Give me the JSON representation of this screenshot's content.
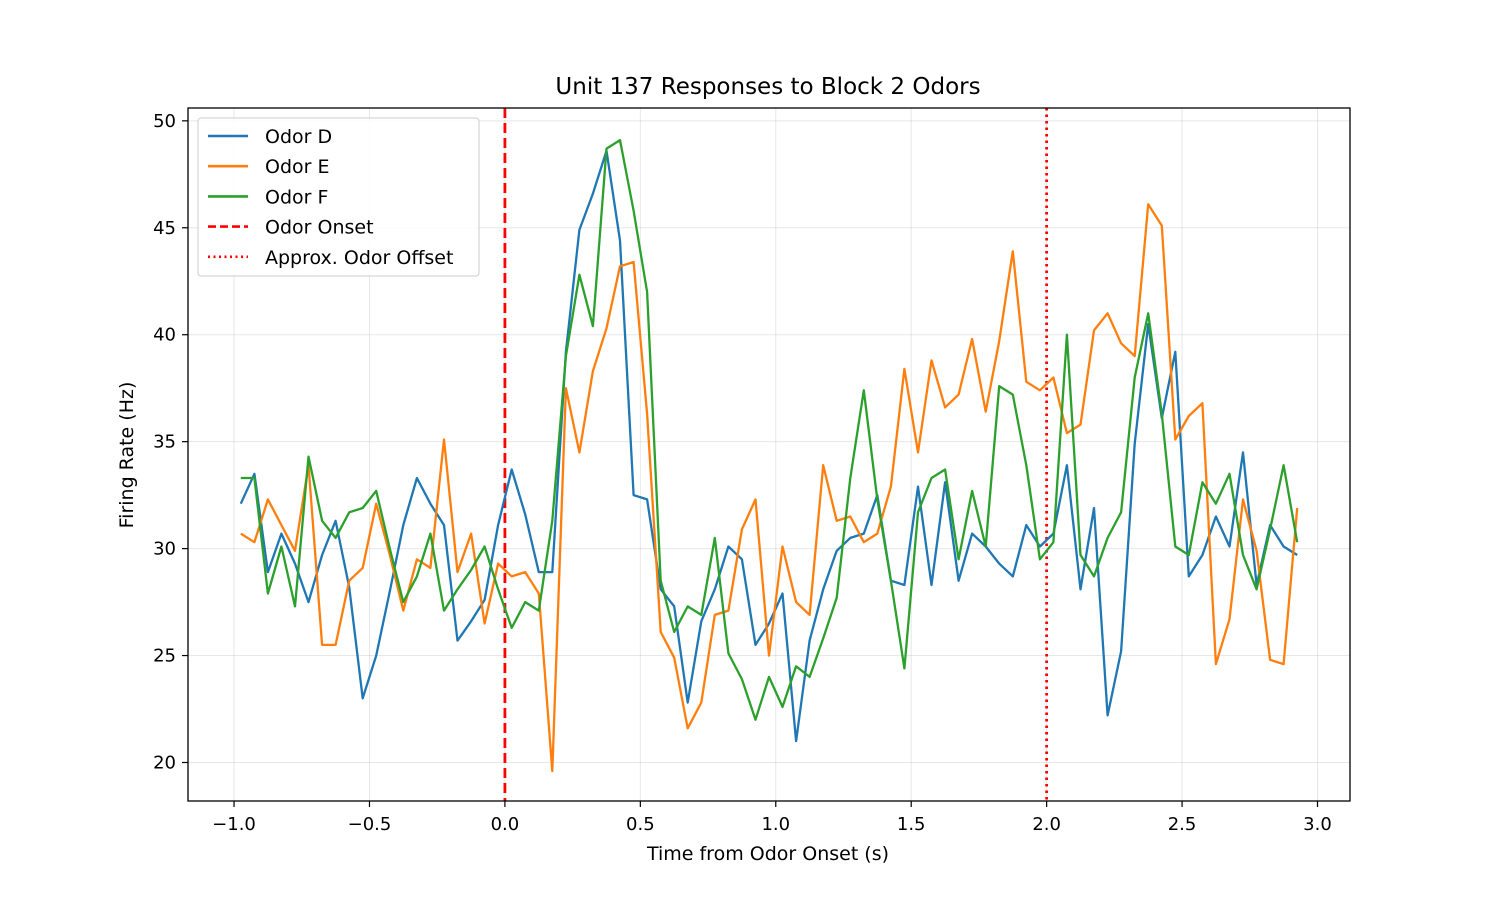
{
  "chart_data": {
    "type": "line",
    "title": "Unit 137 Responses to Block 2 Odors",
    "xlabel": "Time from Odor Onset (s)",
    "ylabel": "Firing Rate (Hz)",
    "xlim": [
      -1.17,
      3.12
    ],
    "ylim": [
      18.2,
      50.6
    ],
    "xticks": [
      -1.0,
      -0.5,
      0.0,
      0.5,
      1.0,
      1.5,
      2.0,
      2.5,
      3.0
    ],
    "xtick_labels": [
      "−1.0",
      "−0.5",
      "0.0",
      "0.5",
      "1.0",
      "1.5",
      "2.0",
      "2.5",
      "3.0"
    ],
    "yticks": [
      20,
      25,
      30,
      35,
      40,
      45,
      50
    ],
    "ytick_labels": [
      "20",
      "25",
      "30",
      "35",
      "40",
      "45",
      "50"
    ],
    "grid": true,
    "legend_position": "top-left",
    "x": [
      -0.975,
      -0.925,
      -0.875,
      -0.825,
      -0.775,
      -0.725,
      -0.675,
      -0.625,
      -0.575,
      -0.525,
      -0.475,
      -0.425,
      -0.375,
      -0.325,
      -0.275,
      -0.225,
      -0.175,
      -0.125,
      -0.075,
      -0.025,
      0.025,
      0.075,
      0.125,
      0.175,
      0.225,
      0.275,
      0.325,
      0.375,
      0.425,
      0.475,
      0.525,
      0.575,
      0.625,
      0.675,
      0.725,
      0.775,
      0.825,
      0.875,
      0.925,
      0.975,
      1.025,
      1.075,
      1.125,
      1.175,
      1.225,
      1.275,
      1.325,
      1.375,
      1.425,
      1.475,
      1.525,
      1.575,
      1.625,
      1.675,
      1.725,
      1.775,
      1.825,
      1.875,
      1.925,
      1.975,
      2.025,
      2.075,
      2.125,
      2.175,
      2.225,
      2.275,
      2.325,
      2.375,
      2.425,
      2.475,
      2.525,
      2.575,
      2.625,
      2.675,
      2.725,
      2.775,
      2.825,
      2.875,
      2.925
    ],
    "series": [
      {
        "name": "Odor D",
        "color": "#1f77b4",
        "values": [
          32.1,
          33.5,
          28.9,
          30.7,
          29.3,
          27.5,
          29.7,
          31.3,
          28.2,
          23.0,
          25.0,
          28.0,
          31.1,
          33.3,
          32.1,
          31.1,
          25.7,
          26.6,
          27.6,
          31.1,
          33.7,
          31.6,
          28.9,
          28.9,
          39.2,
          44.9,
          46.6,
          48.6,
          44.4,
          32.5,
          32.3,
          28.1,
          27.3,
          22.8,
          26.6,
          28.1,
          30.1,
          29.5,
          25.5,
          26.5,
          27.9,
          21.0,
          25.7,
          28.1,
          29.9,
          30.5,
          30.7,
          32.5,
          28.5,
          28.3,
          32.9,
          28.3,
          33.1,
          28.5,
          30.7,
          30.1,
          29.3,
          28.7,
          31.1,
          30.1,
          30.7,
          33.9,
          28.1,
          31.9,
          22.2,
          25.2,
          34.9,
          40.5,
          36.1,
          39.2,
          28.7,
          29.7,
          31.5,
          30.1,
          34.5,
          28.3,
          31.1,
          30.1,
          29.7
        ]
      },
      {
        "name": "Odor E",
        "color": "#ff7f0e",
        "values": [
          30.7,
          30.3,
          32.3,
          31.1,
          29.9,
          33.9,
          25.5,
          25.5,
          28.5,
          29.1,
          32.1,
          29.7,
          27.1,
          29.5,
          29.1,
          35.1,
          28.9,
          30.7,
          26.5,
          29.3,
          28.7,
          28.9,
          27.9,
          19.6,
          37.5,
          34.5,
          38.3,
          40.3,
          43.2,
          43.4,
          36.3,
          26.1,
          24.9,
          21.6,
          22.8,
          26.9,
          27.1,
          30.9,
          32.3,
          25.0,
          30.1,
          27.5,
          26.9,
          33.9,
          31.3,
          31.5,
          30.3,
          30.7,
          32.9,
          38.4,
          34.5,
          38.8,
          36.6,
          37.2,
          39.8,
          36.4,
          39.7,
          43.9,
          37.8,
          37.4,
          38.0,
          35.4,
          35.8,
          40.2,
          41.0,
          39.6,
          39.0,
          46.1,
          45.1,
          35.1,
          36.2,
          36.8,
          24.6,
          26.7,
          32.3,
          29.9,
          24.8,
          24.6,
          31.9
        ]
      },
      {
        "name": "Odor F",
        "color": "#2ca02c",
        "values": [
          33.3,
          33.3,
          27.9,
          30.1,
          27.3,
          34.3,
          31.3,
          30.5,
          31.7,
          31.9,
          32.7,
          30.0,
          27.5,
          28.7,
          30.7,
          27.1,
          28.1,
          29.0,
          30.1,
          28.1,
          26.3,
          27.5,
          27.1,
          31.3,
          39.0,
          42.8,
          40.4,
          48.7,
          49.1,
          45.8,
          42.0,
          28.5,
          26.1,
          27.3,
          26.9,
          30.5,
          25.1,
          23.9,
          22.0,
          24.0,
          22.6,
          24.5,
          24.0,
          25.8,
          27.7,
          33.3,
          37.4,
          32.3,
          28.5,
          24.4,
          31.7,
          33.3,
          33.7,
          29.5,
          32.7,
          30.1,
          37.6,
          37.2,
          33.9,
          29.5,
          30.3,
          40.0,
          29.7,
          28.7,
          30.5,
          31.7,
          38.0,
          41.0,
          36.3,
          30.1,
          29.7,
          33.1,
          32.1,
          33.5,
          29.7,
          28.1,
          30.9,
          33.9,
          30.3
        ]
      }
    ],
    "vlines": [
      {
        "name": "Odor Onset",
        "x": 0.0,
        "color": "#ff0000",
        "style": "dashed"
      },
      {
        "name": "Approx. Odor Offset",
        "x": 2.0,
        "color": "#ff0000",
        "style": "dotted"
      }
    ]
  }
}
